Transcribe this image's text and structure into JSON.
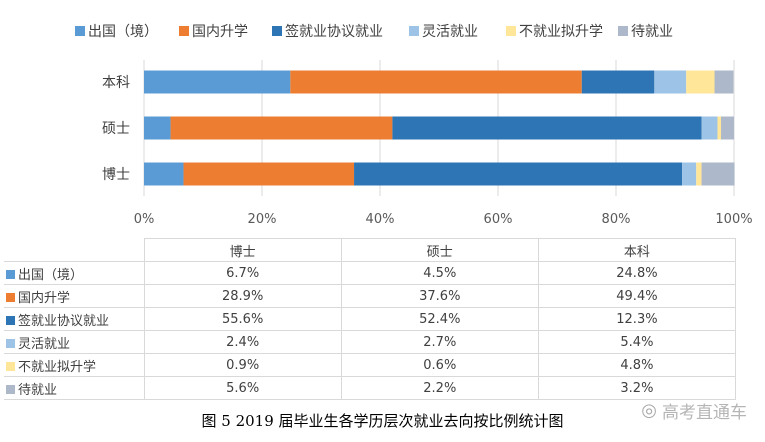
{
  "chart_data": {
    "type": "bar",
    "orientation": "horizontal",
    "stacked": true,
    "categories": [
      "本科",
      "硕士",
      "博士"
    ],
    "series": [
      {
        "name": "出国（境）",
        "color": "#5b9bd5",
        "values": [
          24.8,
          4.5,
          6.7
        ]
      },
      {
        "name": "国内升学",
        "color": "#ed7d31",
        "values": [
          49.4,
          37.6,
          28.9
        ]
      },
      {
        "name": "签就业协议就业",
        "color": "#2e75b6",
        "values": [
          12.3,
          52.4,
          55.6
        ]
      },
      {
        "name": "灵活就业",
        "color": "#9dc3e6",
        "values": [
          5.4,
          2.7,
          2.4
        ]
      },
      {
        "name": "不就业拟升学",
        "color": "#ffe699",
        "values": [
          4.8,
          0.6,
          0.9
        ]
      },
      {
        "name": "待就业",
        "color": "#adb9ca",
        "values": [
          3.2,
          2.2,
          5.6
        ]
      }
    ],
    "xlim": [
      0,
      100
    ],
    "x_ticks": [
      "0%",
      "20%",
      "40%",
      "60%",
      "80%",
      "100%"
    ],
    "legend_position": "top",
    "title": "图 5    2019 届毕业生各学历层次就业去向按比例统计图"
  },
  "table": {
    "columns": [
      "博士",
      "硕士",
      "本科"
    ],
    "rows": [
      {
        "label": "出国（境）",
        "values": [
          "6.7%",
          "4.5%",
          "24.8%"
        ]
      },
      {
        "label": "国内升学",
        "values": [
          "28.9%",
          "37.6%",
          "49.4%"
        ]
      },
      {
        "label": "签就业协议就业",
        "values": [
          "55.6%",
          "52.4%",
          "12.3%"
        ]
      },
      {
        "label": "灵活就业",
        "values": [
          "2.4%",
          "2.7%",
          "5.4%"
        ]
      },
      {
        "label": "不就业拟升学",
        "values": [
          "0.9%",
          "0.6%",
          "4.8%"
        ]
      },
      {
        "label": "待就业",
        "values": [
          "5.6%",
          "2.2%",
          "3.2%"
        ]
      }
    ]
  },
  "caption": "图 5    2019 届毕业生各学历层次就业去向按比例统计图",
  "watermark": {
    "text": "高考直通车",
    "icon": "wechat-icon"
  }
}
